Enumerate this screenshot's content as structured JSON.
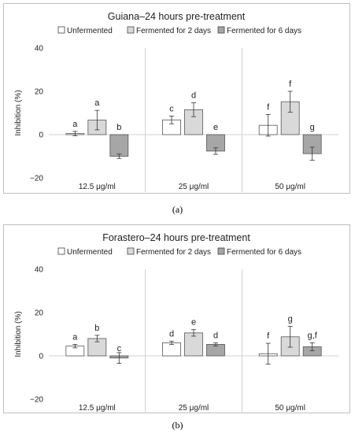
{
  "chart_data": [
    {
      "type": "bar",
      "title": "Guiana–24 hours pre-treatment",
      "ylabel": "Inhibition (%)",
      "xlabel": "",
      "ylim": [
        -20,
        40
      ],
      "yticks": [
        "−20",
        "0",
        "20",
        "40"
      ],
      "yticks_values": [
        -20,
        0,
        20,
        40
      ],
      "grid": false,
      "legend_position": "top",
      "categories": [
        "12.5 μg/ml",
        "25 μg/ml",
        "50 μg/ml"
      ],
      "series": [
        {
          "name": "Unfermented",
          "color": "#ffffff",
          "values": [
            0.5,
            6.8,
            4.3
          ],
          "errors": [
            1.0,
            1.8,
            5.0
          ],
          "labels": [
            "a",
            "c",
            "f"
          ]
        },
        {
          "name": "Fermented for 2 days",
          "color": "#d9d9d9",
          "values": [
            6.7,
            11.5,
            15.2
          ],
          "errors": [
            4.5,
            3.2,
            4.8
          ],
          "labels": [
            "a",
            "d",
            "f"
          ]
        },
        {
          "name": "Fermented for 6 days",
          "color": "#a6a6a6",
          "values": [
            -10.0,
            -7.6,
            -8.8
          ],
          "errors": [
            1.0,
            1.5,
            3.0
          ],
          "labels": [
            "b",
            "e",
            "g"
          ]
        }
      ]
    },
    {
      "type": "bar",
      "title": "Forastero–24 hours pre-treatment",
      "ylabel": "Inhibition (%)",
      "xlabel": "",
      "ylim": [
        -20,
        40
      ],
      "yticks": [
        "−20",
        "0",
        "20",
        "40"
      ],
      "yticks_values": [
        -20,
        0,
        20,
        40
      ],
      "grid": false,
      "legend_position": "top",
      "categories": [
        "12.5 μg/ml",
        "25 μg/ml",
        "50 μg/ml"
      ],
      "series": [
        {
          "name": "Unfermented",
          "color": "#ffffff",
          "values": [
            4.5,
            6.0,
            1.0
          ],
          "errors": [
            0.8,
            0.8,
            4.8
          ],
          "labels": [
            "a",
            "d",
            "f"
          ]
        },
        {
          "name": "Fermented for 2 days",
          "color": "#d9d9d9",
          "values": [
            8.0,
            10.6,
            8.8
          ],
          "errors": [
            1.5,
            1.5,
            4.8
          ],
          "labels": [
            "b",
            "e",
            "g"
          ]
        },
        {
          "name": "Fermented for 6 days",
          "color": "#a6a6a6",
          "values": [
            -1.0,
            5.3,
            4.2
          ],
          "errors": [
            2.5,
            0.7,
            1.8
          ],
          "labels": [
            "c",
            "d",
            "g,f"
          ]
        }
      ]
    }
  ],
  "captions": [
    "(a)",
    "(b)"
  ]
}
